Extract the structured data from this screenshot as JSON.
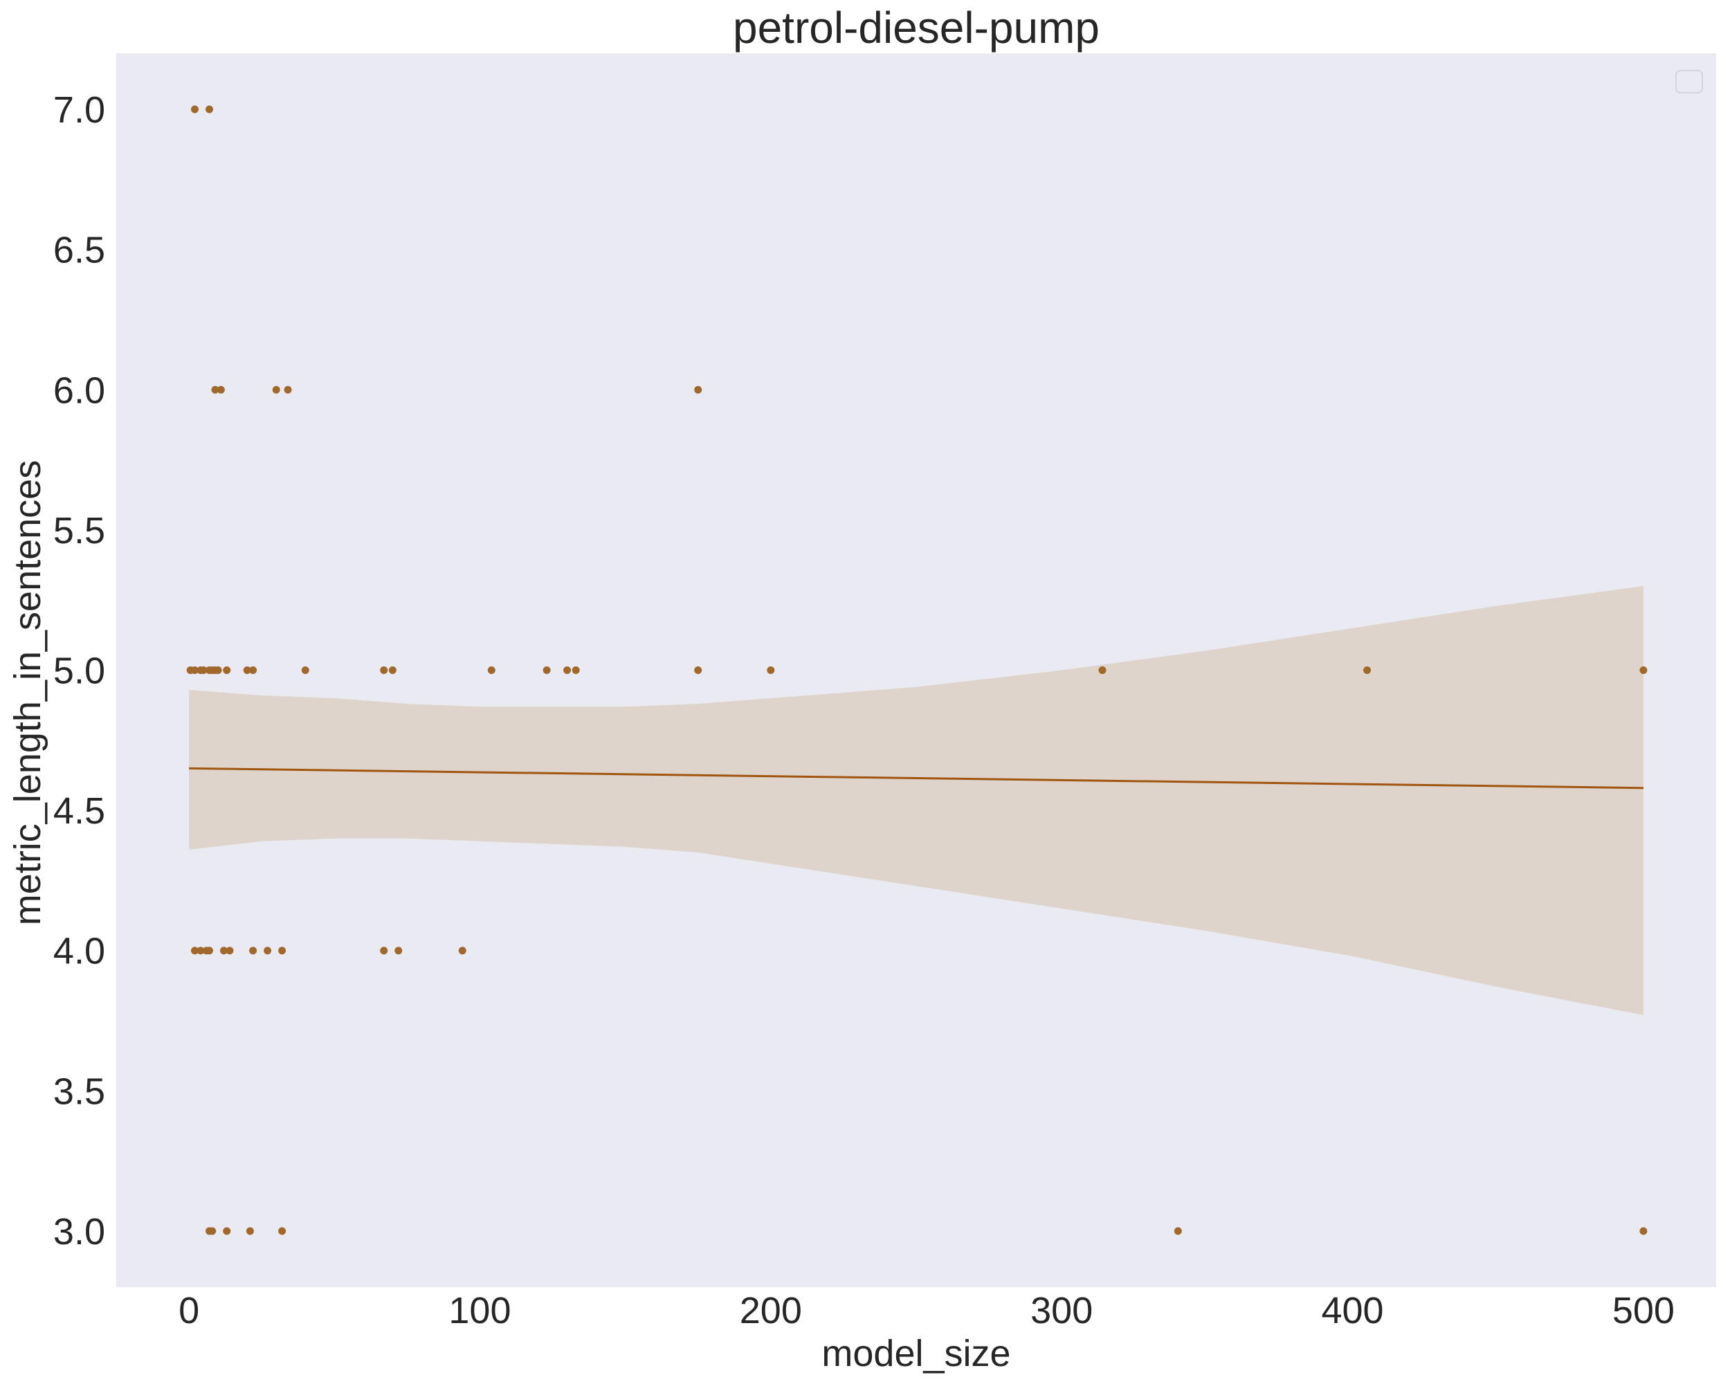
{
  "chart_data": {
    "type": "scatter",
    "title": "petrol-diesel-pump",
    "xlabel": "model_size",
    "ylabel": "metric_length_in_sentences",
    "xlim": [
      -25,
      525
    ],
    "ylim": [
      2.8,
      7.2
    ],
    "xticks": [
      0,
      100,
      200,
      300,
      400,
      500
    ],
    "yticks": [
      3.0,
      3.5,
      4.0,
      4.5,
      5.0,
      5.5,
      6.0,
      6.5,
      7.0
    ],
    "grid": false,
    "legend": "top-right (empty)",
    "colors": {
      "background": "#eaeaf2",
      "points": "#a0682a",
      "line": "#a0560e",
      "band": "#dcd0c6"
    },
    "points": [
      {
        "x": 2,
        "y": 7
      },
      {
        "x": 7,
        "y": 7
      },
      {
        "x": 9,
        "y": 6
      },
      {
        "x": 11,
        "y": 6
      },
      {
        "x": 30,
        "y": 6
      },
      {
        "x": 34,
        "y": 6
      },
      {
        "x": 175,
        "y": 6
      },
      {
        "x": 0.5,
        "y": 5
      },
      {
        "x": 2,
        "y": 5
      },
      {
        "x": 4,
        "y": 5
      },
      {
        "x": 5,
        "y": 5
      },
      {
        "x": 7,
        "y": 5
      },
      {
        "x": 8,
        "y": 5
      },
      {
        "x": 9,
        "y": 5
      },
      {
        "x": 10,
        "y": 5
      },
      {
        "x": 13,
        "y": 5
      },
      {
        "x": 20,
        "y": 5
      },
      {
        "x": 22,
        "y": 5
      },
      {
        "x": 40,
        "y": 5
      },
      {
        "x": 67,
        "y": 5
      },
      {
        "x": 70,
        "y": 5
      },
      {
        "x": 104,
        "y": 5
      },
      {
        "x": 123,
        "y": 5
      },
      {
        "x": 130,
        "y": 5
      },
      {
        "x": 133,
        "y": 5
      },
      {
        "x": 175,
        "y": 5
      },
      {
        "x": 200,
        "y": 5
      },
      {
        "x": 314,
        "y": 5
      },
      {
        "x": 405,
        "y": 5
      },
      {
        "x": 500,
        "y": 5
      },
      {
        "x": 2,
        "y": 4
      },
      {
        "x": 4,
        "y": 4
      },
      {
        "x": 6,
        "y": 4
      },
      {
        "x": 7,
        "y": 4
      },
      {
        "x": 12,
        "y": 4
      },
      {
        "x": 14,
        "y": 4
      },
      {
        "x": 22,
        "y": 4
      },
      {
        "x": 27,
        "y": 4
      },
      {
        "x": 32,
        "y": 4
      },
      {
        "x": 67,
        "y": 4
      },
      {
        "x": 72,
        "y": 4
      },
      {
        "x": 94,
        "y": 4
      },
      {
        "x": 7,
        "y": 3
      },
      {
        "x": 8,
        "y": 3
      },
      {
        "x": 13,
        "y": 3
      },
      {
        "x": 21,
        "y": 3
      },
      {
        "x": 32,
        "y": 3
      },
      {
        "x": 340,
        "y": 3
      },
      {
        "x": 500,
        "y": 3
      }
    ],
    "regression_line": [
      {
        "x": 0,
        "y": 4.65
      },
      {
        "x": 500,
        "y": 4.58
      }
    ],
    "confidence_band": {
      "x": [
        0,
        25,
        50,
        75,
        100,
        125,
        150,
        175,
        200,
        250,
        300,
        350,
        400,
        450,
        500
      ],
      "upper": [
        4.93,
        4.91,
        4.9,
        4.88,
        4.87,
        4.87,
        4.87,
        4.88,
        4.9,
        4.94,
        5.0,
        5.07,
        5.15,
        5.23,
        5.3
      ],
      "lower": [
        4.36,
        4.39,
        4.4,
        4.4,
        4.39,
        4.38,
        4.37,
        4.35,
        4.31,
        4.23,
        4.15,
        4.07,
        3.98,
        3.87,
        3.77
      ]
    }
  }
}
